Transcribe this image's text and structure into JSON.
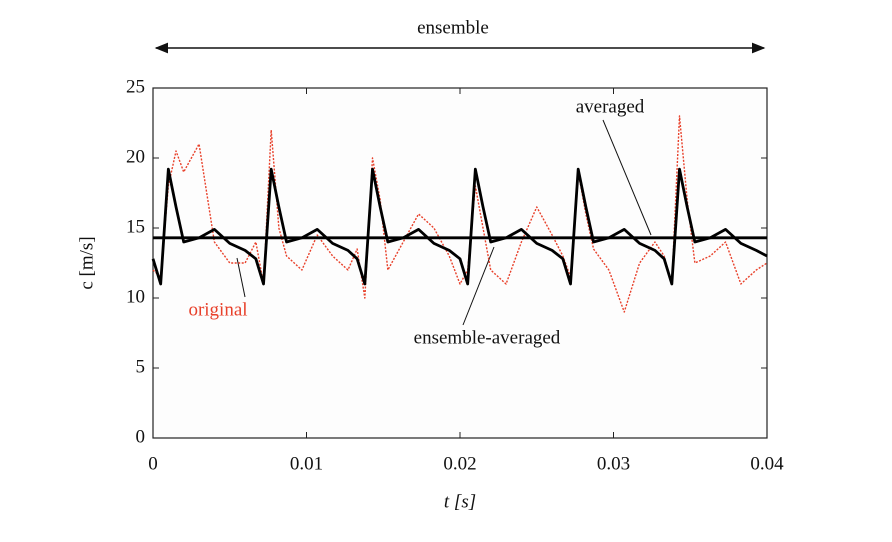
{
  "chart_data": {
    "type": "line",
    "top_annotation": "ensemble",
    "x_label": "t [s]",
    "y_label": "c [m/s]",
    "xlim": [
      0,
      0.04
    ],
    "xticks": [
      0,
      0.01,
      0.02,
      0.03,
      0.04
    ],
    "ylim": [
      0,
      25
    ],
    "yticks": [
      0,
      5,
      10,
      15,
      20,
      25
    ],
    "x": [
      0,
      0.0005,
      0.001,
      0.0015,
      0.002,
      0.003,
      0.004,
      0.005,
      0.006,
      0.0067,
      0.0072,
      0.0077,
      0.0082,
      0.0087,
      0.0097,
      0.0107,
      0.0117,
      0.0127,
      0.0133,
      0.0138,
      0.0143,
      0.0148,
      0.0153,
      0.0163,
      0.0173,
      0.0183,
      0.0193,
      0.02,
      0.0205,
      0.021,
      0.0215,
      0.022,
      0.023,
      0.024,
      0.025,
      0.026,
      0.0267,
      0.0272,
      0.0277,
      0.0282,
      0.0287,
      0.0297,
      0.0307,
      0.0317,
      0.0327,
      0.0333,
      0.0338,
      0.0343,
      0.0348,
      0.0353,
      0.0363,
      0.0373,
      0.0383,
      0.0393,
      0.04
    ],
    "series": [
      {
        "name": "original",
        "color": "#e8402a",
        "dash": true,
        "values": [
          12,
          11.5,
          18,
          20.5,
          19,
          21,
          14,
          12.5,
          12.5,
          14,
          11,
          22,
          15,
          13,
          12,
          14.5,
          13,
          12,
          13.5,
          10,
          20,
          17,
          12,
          14,
          16,
          15,
          13,
          11,
          12,
          18,
          15,
          12,
          11,
          14,
          16.5,
          14.5,
          13,
          11.5,
          19,
          16,
          13.5,
          12,
          9,
          12.5,
          14,
          13,
          11,
          23,
          17,
          12.5,
          13,
          14,
          11,
          12,
          12.5
        ]
      },
      {
        "name": "ensemble-averaged",
        "color": "#000000",
        "dash": false,
        "values": [
          12.8,
          11.0,
          19.2,
          16.5,
          14.0,
          14.3,
          14.9,
          13.9,
          13.4,
          12.8,
          11.0,
          19.2,
          16.5,
          14.0,
          14.3,
          14.9,
          13.9,
          13.4,
          12.8,
          11.0,
          19.2,
          16.5,
          14.0,
          14.3,
          14.9,
          13.9,
          13.4,
          12.8,
          11.0,
          19.2,
          16.5,
          14.0,
          14.3,
          14.9,
          13.9,
          13.4,
          12.8,
          11.0,
          19.2,
          16.5,
          14.0,
          14.3,
          14.9,
          13.9,
          13.4,
          12.8,
          11.0,
          19.2,
          16.5,
          14.0,
          14.3,
          14.9,
          13.9,
          13.4,
          13.0
        ]
      },
      {
        "name": "averaged",
        "color": "#000000",
        "dash": false,
        "values": [
          14.3,
          14.3,
          14.3,
          14.3,
          14.3,
          14.3,
          14.3,
          14.3,
          14.3,
          14.3,
          14.3,
          14.3,
          14.3,
          14.3,
          14.3,
          14.3,
          14.3,
          14.3,
          14.3,
          14.3,
          14.3,
          14.3,
          14.3,
          14.3,
          14.3,
          14.3,
          14.3,
          14.3,
          14.3,
          14.3,
          14.3,
          14.3,
          14.3,
          14.3,
          14.3,
          14.3,
          14.3,
          14.3,
          14.3,
          14.3,
          14.3,
          14.3,
          14.3,
          14.3,
          14.3,
          14.3,
          14.3,
          14.3,
          14.3,
          14.3,
          14.3,
          14.3,
          14.3,
          14.3,
          14.3
        ]
      }
    ]
  }
}
